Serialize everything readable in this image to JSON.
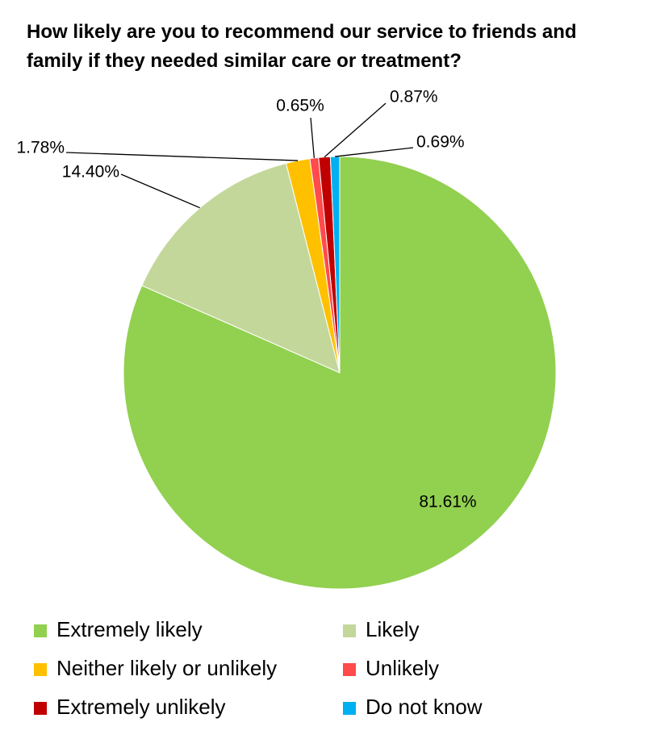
{
  "chart_data": {
    "type": "pie",
    "title": "How likely are you to recommend our service to friends and family if they needed similar care or treatment?",
    "categories": [
      "Extremely likely",
      "Likely",
      "Neither likely or unlikely",
      "Unlikely",
      "Extremely unlikely",
      "Do not know"
    ],
    "values": [
      81.61,
      14.4,
      1.78,
      0.65,
      0.87,
      0.69
    ],
    "value_labels": [
      "81.61%",
      "14.40%",
      "1.78%",
      "0.65%",
      "0.87%",
      "0.69%"
    ],
    "colors": [
      "#92d050",
      "#c4d79b",
      "#ffc000",
      "#ff4b4b",
      "#c00000",
      "#00b0f0"
    ]
  }
}
